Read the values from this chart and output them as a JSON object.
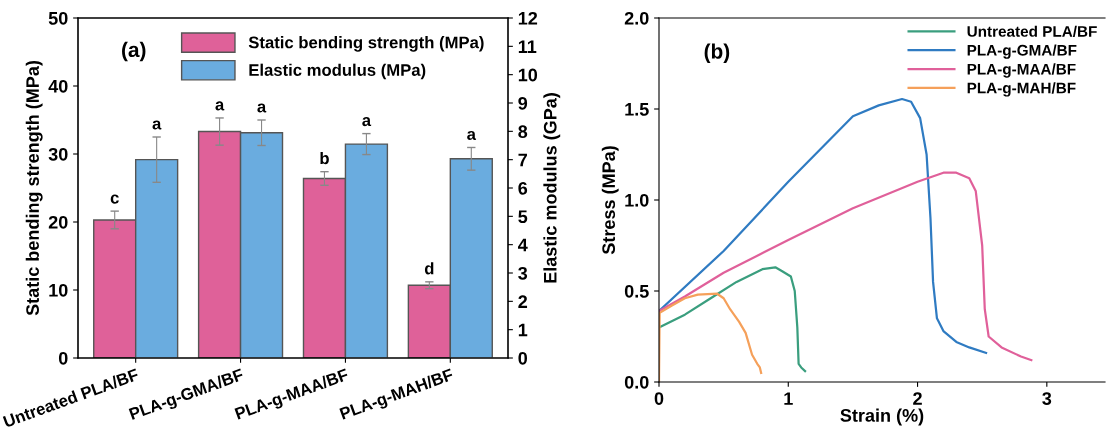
{
  "chart_data": [
    {
      "type": "bar",
      "categories": [
        "Untreated PLA/BF",
        "PLA-g-GMA/BF",
        "PLA-g-MAA/BF",
        "PLA-g-MAH/BF"
      ],
      "ylabel": "Static bending strength (MPa)",
      "y2label": "Elastic modulus (GPa)",
      "ylim": [
        0,
        50
      ],
      "yticks": [
        0,
        10,
        20,
        30,
        40,
        50
      ],
      "y2lim": [
        0,
        12
      ],
      "y2ticks": [
        0,
        1,
        2,
        3,
        4,
        5,
        6,
        7,
        8,
        9,
        10,
        11,
        12
      ],
      "legend": "top right",
      "grid": false,
      "annotations": [
        "(a)"
      ],
      "series": [
        {
          "name": "Static bending strength (MPa)",
          "color": "#df6199",
          "values": [
            20.3,
            33.3,
            26.4,
            10.7
          ],
          "errors": [
            1.3,
            2.0,
            1.0,
            0.5
          ],
          "value_labels": [
            "c",
            "a",
            "b",
            "d"
          ]
        },
        {
          "name": "Elastic modulus (MPa)",
          "color": "#6aacdf",
          "axis": "y2",
          "values": [
            7.0,
            7.95,
            7.55,
            7.03
          ],
          "errors": [
            0.8,
            0.45,
            0.37,
            0.4
          ],
          "value_labels": [
            "a",
            "a",
            "a",
            "a"
          ]
        }
      ]
    },
    {
      "type": "line",
      "xlabel": "Strain (%)",
      "ylabel": "Stress (MPa)",
      "xlim": [
        0,
        3.45
      ],
      "xticks": [
        0,
        1,
        2,
        3
      ],
      "ylim": [
        0,
        2.0
      ],
      "yticks": [
        {
          "value": 0,
          "label": "0.0"
        },
        {
          "value": 0.5,
          "label": "0.5"
        },
        {
          "value": 1.0,
          "label": "1.0"
        },
        {
          "value": 1.5,
          "label": "1.5"
        },
        {
          "value": 2.0,
          "label": "2.0"
        }
      ],
      "legend": "top right",
      "grid": false,
      "marker": "none",
      "line_style": "solid",
      "annotations": [
        "(b)"
      ],
      "series": [
        {
          "name": "Untreated PLA/BF",
          "color": "#3a9e7e",
          "x": [
            0,
            0.2,
            0.4,
            0.6,
            0.8,
            0.9,
            0.95,
            1.02,
            1.05,
            1.07,
            1.08,
            1.1,
            1.13
          ],
          "values": [
            0.3,
            0.37,
            0.46,
            0.55,
            0.62,
            0.63,
            0.61,
            0.58,
            0.5,
            0.3,
            0.1,
            0.08,
            0.06
          ]
        },
        {
          "name": "PLA-g-GMA/BF",
          "color": "#2f7bc2",
          "x": [
            0,
            0.5,
            1.0,
            1.5,
            1.7,
            1.88,
            1.95,
            2.02,
            2.07,
            2.1,
            2.12,
            2.15,
            2.2,
            2.3,
            2.4,
            2.53
          ],
          "values": [
            0.39,
            0.72,
            1.1,
            1.46,
            1.52,
            1.555,
            1.54,
            1.45,
            1.25,
            0.9,
            0.55,
            0.35,
            0.28,
            0.22,
            0.19,
            0.16
          ]
        },
        {
          "name": "PLA-g-MAA/BF",
          "color": "#e0609a",
          "x": [
            0,
            0.2,
            0.5,
            1.0,
            1.5,
            2.0,
            2.2,
            2.3,
            2.4,
            2.45,
            2.5,
            2.52,
            2.55,
            2.65,
            2.8,
            2.88
          ],
          "values": [
            0.39,
            0.47,
            0.6,
            0.78,
            0.955,
            1.1,
            1.15,
            1.15,
            1.12,
            1.05,
            0.75,
            0.4,
            0.25,
            0.19,
            0.14,
            0.12
          ]
        },
        {
          "name": "PLA-g-MAH/BF",
          "color": "#f5a05a",
          "x": [
            0,
            0.005,
            0.1,
            0.2,
            0.3,
            0.45,
            0.5,
            0.55,
            0.62,
            0.67,
            0.72,
            0.76,
            0.78,
            0.79
          ],
          "values": [
            0.0,
            0.38,
            0.42,
            0.46,
            0.48,
            0.485,
            0.46,
            0.4,
            0.33,
            0.27,
            0.15,
            0.1,
            0.08,
            0.05
          ]
        }
      ]
    }
  ]
}
